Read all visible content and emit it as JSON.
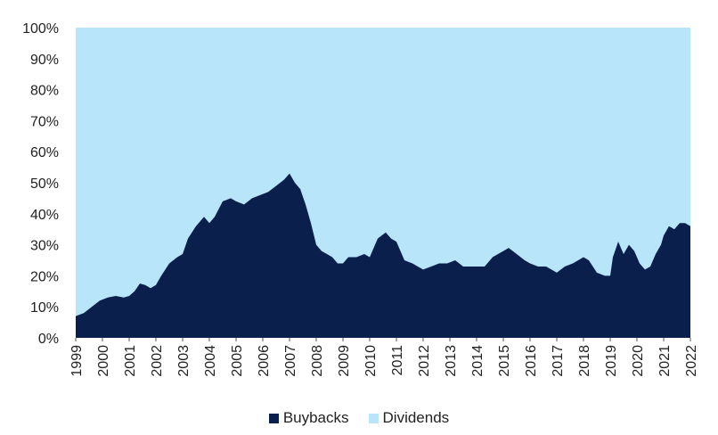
{
  "chart_data": {
    "type": "area",
    "stacked": true,
    "percent_stacked": true,
    "title": "",
    "xlabel": "",
    "ylabel": "",
    "x_ticks": [
      "1999",
      "2000",
      "2001",
      "2002",
      "2003",
      "2004",
      "2005",
      "2006",
      "2007",
      "2008",
      "2009",
      "2010",
      "2011",
      "2012",
      "2013",
      "2014",
      "2015",
      "2016",
      "2017",
      "2018",
      "2019",
      "2020",
      "2021",
      "2022"
    ],
    "y_ticks": [
      "0%",
      "10%",
      "20%",
      "30%",
      "40%",
      "50%",
      "60%",
      "70%",
      "80%",
      "90%",
      "100%"
    ],
    "xlim": [
      1999,
      2022
    ],
    "ylim": [
      0,
      100
    ],
    "grid": false,
    "legend_position": "bottom",
    "series": [
      {
        "name": "Buybacks",
        "color": "#0a1f4b",
        "x": [
          1999.0,
          1999.3,
          1999.6,
          1999.9,
          2000.2,
          2000.5,
          2000.8,
          2001.0,
          2001.2,
          2001.4,
          2001.6,
          2001.8,
          2002.0,
          2002.2,
          2002.5,
          2002.8,
          2003.0,
          2003.2,
          2003.5,
          2003.8,
          2004.0,
          2004.2,
          2004.5,
          2004.8,
          2005.0,
          2005.3,
          2005.6,
          2005.9,
          2006.2,
          2006.5,
          2006.8,
          2007.0,
          2007.2,
          2007.4,
          2007.6,
          2007.8,
          2008.0,
          2008.2,
          2008.4,
          2008.6,
          2008.8,
          2009.0,
          2009.2,
          2009.5,
          2009.8,
          2010.0,
          2010.3,
          2010.6,
          2010.8,
          2011.0,
          2011.3,
          2011.6,
          2011.8,
          2012.0,
          2012.3,
          2012.6,
          2012.9,
          2013.2,
          2013.5,
          2013.8,
          2014.0,
          2014.3,
          2014.6,
          2014.8,
          2015.0,
          2015.2,
          2015.5,
          2015.8,
          2016.0,
          2016.3,
          2016.6,
          2016.8,
          2017.0,
          2017.3,
          2017.6,
          2017.8,
          2018.0,
          2018.2,
          2018.5,
          2018.8,
          2019.0,
          2019.1,
          2019.3,
          2019.5,
          2019.7,
          2019.9,
          2020.1,
          2020.3,
          2020.5,
          2020.7,
          2020.9,
          2021.0,
          2021.2,
          2021.4,
          2021.6,
          2021.8,
          2022.0
        ],
        "values": [
          7,
          8,
          10,
          12,
          13,
          13.5,
          13,
          13.5,
          15,
          17.5,
          17,
          16,
          17,
          20,
          24,
          26,
          27,
          32,
          36,
          39,
          37,
          39,
          44,
          45,
          44,
          43,
          45,
          46,
          47,
          49,
          51,
          53,
          50,
          48,
          43,
          37,
          30,
          28,
          27,
          26,
          24,
          24,
          26,
          26,
          27,
          26,
          32,
          34,
          32,
          31,
          25,
          24,
          23,
          22,
          23,
          24,
          24,
          25,
          23,
          23,
          23,
          23,
          26,
          27,
          28,
          29,
          27,
          25,
          24,
          23,
          23,
          22,
          21,
          23,
          24,
          25,
          26,
          25,
          21,
          20,
          20,
          26,
          31,
          27,
          30,
          28,
          24,
          22,
          23,
          27,
          30,
          33,
          36,
          35,
          37,
          37,
          36
        ]
      },
      {
        "name": "Dividends",
        "color": "#b9e5fa"
      }
    ]
  }
}
